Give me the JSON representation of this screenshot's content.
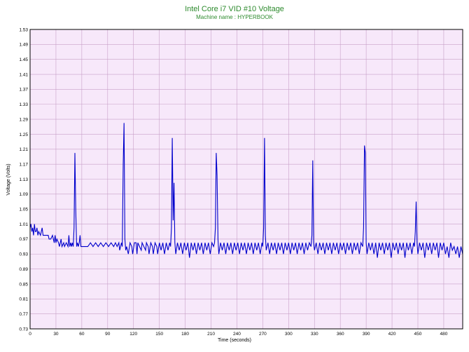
{
  "chart_data": {
    "type": "line",
    "title": "Intel Core i7 VID #10 Voltage",
    "subtitle": "Machine name : HYPERBOOK",
    "xlabel": "Time (seconds)",
    "ylabel": "Voltage (Volts)",
    "xlim": [
      0,
      502
    ],
    "ylim": [
      0.73,
      1.53
    ],
    "x_ticks": [
      0,
      30,
      60,
      90,
      120,
      150,
      180,
      210,
      240,
      270,
      300,
      330,
      360,
      390,
      420,
      450,
      480
    ],
    "y_ticks": [
      0.73,
      0.77,
      0.81,
      0.85,
      0.89,
      0.93,
      0.97,
      1.01,
      1.05,
      1.09,
      1.13,
      1.17,
      1.21,
      1.25,
      1.29,
      1.33,
      1.37,
      1.41,
      1.45,
      1.49,
      1.53
    ],
    "grid": true,
    "colors": {
      "background": "#f7e8fa",
      "grid": "#c8a0c8",
      "line": "#0000cc",
      "title": "#2e8b2e"
    },
    "series": [
      {
        "values": [
          [
            0,
            1.0
          ],
          [
            1,
            1.01
          ],
          [
            2,
            0.99
          ],
          [
            3,
            1.0
          ],
          [
            4,
            0.98
          ],
          [
            5,
            1.01
          ],
          [
            6,
            0.99
          ],
          [
            7,
            0.99
          ],
          [
            8,
            1.0
          ],
          [
            9,
            0.98
          ],
          [
            10,
            0.99
          ],
          [
            12,
            0.98
          ],
          [
            14,
            1.0
          ],
          [
            15,
            0.98
          ],
          [
            17,
            0.98
          ],
          [
            19,
            0.98
          ],
          [
            21,
            0.98
          ],
          [
            22,
            0.97
          ],
          [
            24,
            0.97
          ],
          [
            26,
            0.98
          ],
          [
            28,
            0.96
          ],
          [
            29,
            0.98
          ],
          [
            30,
            0.96
          ],
          [
            31,
            0.97
          ],
          [
            33,
            0.96
          ],
          [
            34,
            0.95
          ],
          [
            36,
            0.97
          ],
          [
            37,
            0.95
          ],
          [
            39,
            0.96
          ],
          [
            40,
            0.95
          ],
          [
            42,
            0.96
          ],
          [
            44,
            0.95
          ],
          [
            45,
            0.98
          ],
          [
            46,
            0.95
          ],
          [
            47,
            0.96
          ],
          [
            48,
            0.95
          ],
          [
            49,
            0.96
          ],
          [
            50,
            0.95
          ],
          [
            51,
            1.0
          ],
          [
            52,
            1.2
          ],
          [
            53,
            1.05
          ],
          [
            54,
            0.95
          ],
          [
            55,
            0.96
          ],
          [
            56,
            0.95
          ],
          [
            57,
            0.96
          ],
          [
            58,
            0.98
          ],
          [
            59,
            0.95
          ],
          [
            61,
            0.95
          ],
          [
            64,
            0.95
          ],
          [
            67,
            0.95
          ],
          [
            70,
            0.96
          ],
          [
            73,
            0.95
          ],
          [
            76,
            0.96
          ],
          [
            79,
            0.95
          ],
          [
            82,
            0.96
          ],
          [
            85,
            0.95
          ],
          [
            88,
            0.96
          ],
          [
            91,
            0.95
          ],
          [
            94,
            0.96
          ],
          [
            97,
            0.95
          ],
          [
            99,
            0.96
          ],
          [
            101,
            0.95
          ],
          [
            103,
            0.96
          ],
          [
            104,
            0.94
          ],
          [
            105,
            0.95
          ],
          [
            106,
            0.96
          ],
          [
            107,
            0.95
          ],
          [
            108,
            1.17
          ],
          [
            109,
            1.28
          ],
          [
            110,
            0.97
          ],
          [
            111,
            0.94
          ],
          [
            112,
            0.95
          ],
          [
            114,
            0.93
          ],
          [
            116,
            0.96
          ],
          [
            118,
            0.95
          ],
          [
            119,
            0.93
          ],
          [
            121,
            0.96
          ],
          [
            123,
            0.96
          ],
          [
            124,
            0.93
          ],
          [
            125,
            0.96
          ],
          [
            127,
            0.95
          ],
          [
            129,
            0.94
          ],
          [
            130,
            0.96
          ],
          [
            132,
            0.95
          ],
          [
            134,
            0.94
          ],
          [
            135,
            0.96
          ],
          [
            137,
            0.95
          ],
          [
            138,
            0.93
          ],
          [
            140,
            0.96
          ],
          [
            142,
            0.95
          ],
          [
            143,
            0.93
          ],
          [
            145,
            0.96
          ],
          [
            147,
            0.95
          ],
          [
            148,
            0.93
          ],
          [
            150,
            0.96
          ],
          [
            152,
            0.94
          ],
          [
            154,
            0.96
          ],
          [
            156,
            0.93
          ],
          [
            158,
            0.96
          ],
          [
            160,
            0.94
          ],
          [
            162,
            0.96
          ],
          [
            163,
            0.95
          ],
          [
            164,
            1.0
          ],
          [
            165,
            1.24
          ],
          [
            166,
            1.02
          ],
          [
            167,
            1.12
          ],
          [
            168,
            0.96
          ],
          [
            169,
            0.93
          ],
          [
            171,
            0.96
          ],
          [
            173,
            0.94
          ],
          [
            175,
            0.96
          ],
          [
            177,
            0.93
          ],
          [
            179,
            0.96
          ],
          [
            181,
            0.94
          ],
          [
            183,
            0.96
          ],
          [
            185,
            0.92
          ],
          [
            187,
            0.96
          ],
          [
            189,
            0.94
          ],
          [
            191,
            0.96
          ],
          [
            193,
            0.93
          ],
          [
            195,
            0.96
          ],
          [
            197,
            0.94
          ],
          [
            199,
            0.96
          ],
          [
            201,
            0.93
          ],
          [
            203,
            0.96
          ],
          [
            205,
            0.94
          ],
          [
            207,
            0.96
          ],
          [
            209,
            0.93
          ],
          [
            211,
            0.96
          ],
          [
            213,
            0.95
          ],
          [
            214,
            0.96
          ],
          [
            215,
            1.0
          ],
          [
            216,
            1.2
          ],
          [
            217,
            1.14
          ],
          [
            218,
            0.97
          ],
          [
            219,
            0.93
          ],
          [
            221,
            0.96
          ],
          [
            223,
            0.94
          ],
          [
            225,
            0.96
          ],
          [
            227,
            0.93
          ],
          [
            229,
            0.96
          ],
          [
            231,
            0.94
          ],
          [
            233,
            0.96
          ],
          [
            235,
            0.93
          ],
          [
            237,
            0.96
          ],
          [
            239,
            0.94
          ],
          [
            241,
            0.96
          ],
          [
            243,
            0.93
          ],
          [
            245,
            0.96
          ],
          [
            247,
            0.94
          ],
          [
            249,
            0.96
          ],
          [
            251,
            0.93
          ],
          [
            253,
            0.96
          ],
          [
            255,
            0.94
          ],
          [
            257,
            0.96
          ],
          [
            259,
            0.93
          ],
          [
            261,
            0.96
          ],
          [
            263,
            0.94
          ],
          [
            265,
            0.96
          ],
          [
            267,
            0.93
          ],
          [
            269,
            0.96
          ],
          [
            270,
            0.95
          ],
          [
            271,
            1.0
          ],
          [
            272,
            1.24
          ],
          [
            273,
            0.98
          ],
          [
            274,
            0.94
          ],
          [
            276,
            0.96
          ],
          [
            278,
            0.93
          ],
          [
            280,
            0.96
          ],
          [
            282,
            0.94
          ],
          [
            284,
            0.96
          ],
          [
            286,
            0.93
          ],
          [
            288,
            0.96
          ],
          [
            290,
            0.94
          ],
          [
            292,
            0.96
          ],
          [
            294,
            0.93
          ],
          [
            296,
            0.96
          ],
          [
            298,
            0.94
          ],
          [
            300,
            0.96
          ],
          [
            302,
            0.93
          ],
          [
            304,
            0.96
          ],
          [
            306,
            0.94
          ],
          [
            308,
            0.96
          ],
          [
            310,
            0.93
          ],
          [
            312,
            0.96
          ],
          [
            314,
            0.94
          ],
          [
            316,
            0.96
          ],
          [
            318,
            0.93
          ],
          [
            320,
            0.96
          ],
          [
            322,
            0.94
          ],
          [
            324,
            0.96
          ],
          [
            326,
            0.95
          ],
          [
            327,
            0.98
          ],
          [
            328,
            1.18
          ],
          [
            329,
            0.96
          ],
          [
            330,
            0.94
          ],
          [
            332,
            0.96
          ],
          [
            334,
            0.93
          ],
          [
            336,
            0.96
          ],
          [
            338,
            0.94
          ],
          [
            340,
            0.96
          ],
          [
            342,
            0.93
          ],
          [
            344,
            0.96
          ],
          [
            346,
            0.94
          ],
          [
            348,
            0.96
          ],
          [
            350,
            0.93
          ],
          [
            352,
            0.96
          ],
          [
            354,
            0.94
          ],
          [
            356,
            0.96
          ],
          [
            358,
            0.93
          ],
          [
            360,
            0.96
          ],
          [
            362,
            0.94
          ],
          [
            364,
            0.96
          ],
          [
            366,
            0.93
          ],
          [
            368,
            0.96
          ],
          [
            370,
            0.94
          ],
          [
            372,
            0.96
          ],
          [
            374,
            0.93
          ],
          [
            376,
            0.96
          ],
          [
            378,
            0.94
          ],
          [
            380,
            0.96
          ],
          [
            382,
            0.93
          ],
          [
            384,
            0.96
          ],
          [
            386,
            0.95
          ],
          [
            387,
            1.0
          ],
          [
            388,
            1.22
          ],
          [
            389,
            1.2
          ],
          [
            390,
            0.96
          ],
          [
            391,
            0.93
          ],
          [
            393,
            0.96
          ],
          [
            395,
            0.94
          ],
          [
            397,
            0.96
          ],
          [
            399,
            0.93
          ],
          [
            401,
            0.96
          ],
          [
            403,
            0.92
          ],
          [
            405,
            0.96
          ],
          [
            407,
            0.94
          ],
          [
            409,
            0.96
          ],
          [
            411,
            0.93
          ],
          [
            413,
            0.96
          ],
          [
            415,
            0.94
          ],
          [
            417,
            0.96
          ],
          [
            419,
            0.92
          ],
          [
            421,
            0.96
          ],
          [
            423,
            0.94
          ],
          [
            425,
            0.96
          ],
          [
            427,
            0.93
          ],
          [
            429,
            0.96
          ],
          [
            431,
            0.94
          ],
          [
            433,
            0.96
          ],
          [
            435,
            0.92
          ],
          [
            437,
            0.96
          ],
          [
            439,
            0.94
          ],
          [
            441,
            0.96
          ],
          [
            443,
            0.93
          ],
          [
            445,
            0.96
          ],
          [
            446,
            0.95
          ],
          [
            447,
            0.99
          ],
          [
            448,
            1.07
          ],
          [
            449,
            0.96
          ],
          [
            450,
            0.93
          ],
          [
            452,
            0.96
          ],
          [
            454,
            0.94
          ],
          [
            456,
            0.96
          ],
          [
            458,
            0.92
          ],
          [
            460,
            0.96
          ],
          [
            462,
            0.94
          ],
          [
            464,
            0.96
          ],
          [
            466,
            0.93
          ],
          [
            468,
            0.96
          ],
          [
            470,
            0.94
          ],
          [
            472,
            0.96
          ],
          [
            474,
            0.92
          ],
          [
            476,
            0.96
          ],
          [
            478,
            0.94
          ],
          [
            480,
            0.96
          ],
          [
            482,
            0.93
          ],
          [
            484,
            0.95
          ],
          [
            486,
            0.92
          ],
          [
            488,
            0.96
          ],
          [
            490,
            0.94
          ],
          [
            492,
            0.95
          ],
          [
            494,
            0.93
          ],
          [
            496,
            0.95
          ],
          [
            498,
            0.92
          ],
          [
            500,
            0.95
          ],
          [
            502,
            0.93
          ]
        ]
      }
    ]
  }
}
